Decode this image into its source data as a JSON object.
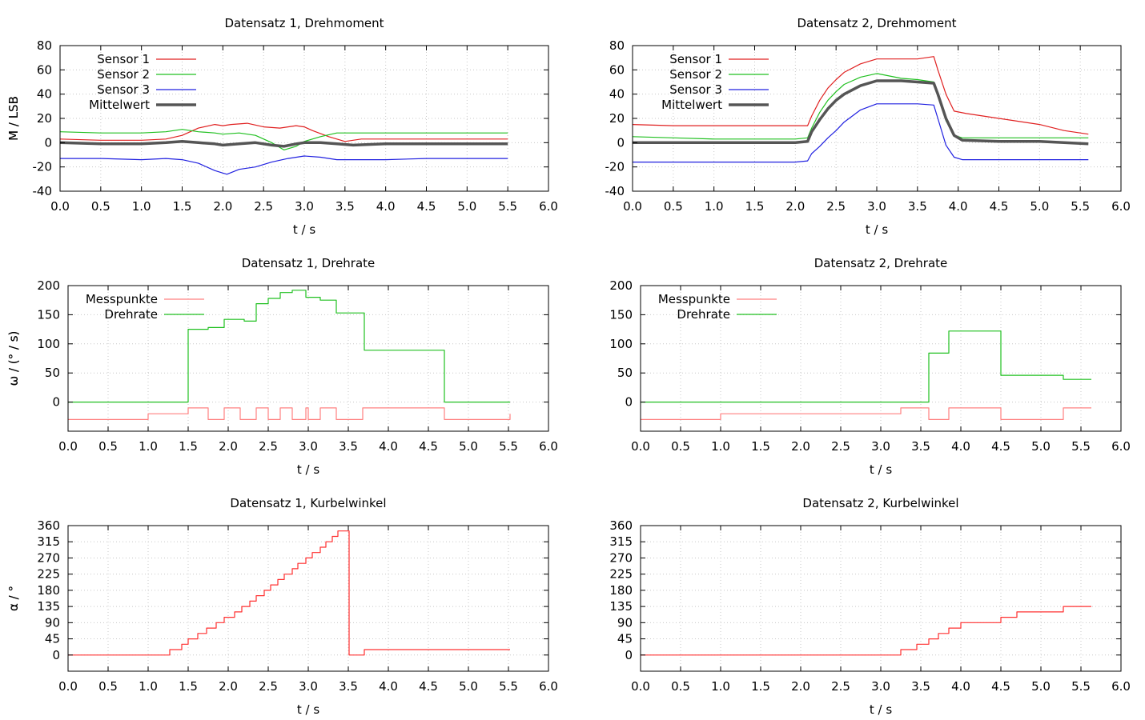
{
  "chart_data": [
    {
      "type": "line",
      "title": "Datensatz 1, Drehmoment",
      "xlabel": "t / s",
      "ylabel": "M / LSB",
      "xlim": [
        0,
        6
      ],
      "ylim": [
        -40,
        80
      ],
      "xticks": [
        "0.0",
        "0.5",
        "1.0",
        "1.5",
        "2.0",
        "2.5",
        "3.0",
        "3.5",
        "4.0",
        "4.5",
        "5.0",
        "5.5",
        "6.0"
      ],
      "yticks": [
        "-40",
        "-20",
        "0",
        "20",
        "40",
        "60",
        "80"
      ],
      "grid": true,
      "legend_position": "top-left",
      "series": [
        {
          "name": "Sensor 1",
          "color": "#e02020",
          "x": [
            0,
            0.5,
            1.0,
            1.3,
            1.5,
            1.7,
            1.9,
            2.0,
            2.1,
            2.3,
            2.5,
            2.7,
            2.9,
            3.0,
            3.1,
            3.3,
            3.5,
            3.7,
            4.0,
            4.5,
            5.0,
            5.5
          ],
          "y": [
            3,
            2,
            2,
            3,
            6,
            12,
            15,
            14,
            15,
            16,
            13,
            12,
            14,
            13,
            10,
            5,
            1,
            3,
            3,
            3,
            3,
            3
          ]
        },
        {
          "name": "Sensor 2",
          "color": "#20c020",
          "x": [
            0,
            0.5,
            1.0,
            1.3,
            1.5,
            1.7,
            1.9,
            2.0,
            2.2,
            2.4,
            2.6,
            2.75,
            2.9,
            3.0,
            3.2,
            3.4,
            3.6,
            4.0,
            4.5,
            5.0,
            5.5
          ],
          "y": [
            9,
            8,
            8,
            9,
            11,
            9,
            8,
            7,
            8,
            6,
            0,
            -6,
            -3,
            1,
            5,
            8,
            8,
            8,
            8,
            8,
            8
          ]
        },
        {
          "name": "Sensor 3",
          "color": "#2020e0",
          "x": [
            0,
            0.5,
            1.0,
            1.3,
            1.5,
            1.7,
            1.9,
            2.0,
            2.05,
            2.2,
            2.4,
            2.6,
            2.8,
            3.0,
            3.2,
            3.4,
            3.6,
            4.0,
            4.5,
            5.0,
            5.5
          ],
          "y": [
            -13,
            -13,
            -14,
            -13,
            -14,
            -17,
            -23,
            -25,
            -26,
            -22,
            -20,
            -16,
            -13,
            -11,
            -12,
            -14,
            -14,
            -14,
            -13,
            -13,
            -13
          ]
        },
        {
          "name": "Mittelwert",
          "color": "#555555",
          "x": [
            0,
            0.5,
            1.0,
            1.3,
            1.5,
            1.7,
            1.9,
            2.0,
            2.2,
            2.4,
            2.6,
            2.75,
            2.9,
            3.0,
            3.2,
            3.4,
            3.6,
            4.0,
            4.5,
            5.0,
            5.5
          ],
          "y": [
            0,
            -1,
            -1,
            0,
            1,
            0,
            -1,
            -2,
            -1,
            0,
            -2,
            -3,
            -1,
            0,
            0,
            -1,
            -2,
            -1,
            -1,
            -1,
            -1
          ]
        }
      ]
    },
    {
      "type": "line",
      "title": "Datensatz 2, Drehmoment",
      "xlabel": "t / s",
      "ylabel": "M / LSB",
      "xlim": [
        0,
        6
      ],
      "ylim": [
        -40,
        80
      ],
      "xticks": [
        "0.0",
        "0.5",
        "1.0",
        "1.5",
        "2.0",
        "2.5",
        "3.0",
        "3.5",
        "4.0",
        "4.5",
        "5.0",
        "5.5",
        "6.0"
      ],
      "yticks": [
        "-40",
        "-20",
        "0",
        "20",
        "40",
        "60",
        "80"
      ],
      "grid": true,
      "legend_position": "top-left",
      "series": [
        {
          "name": "Sensor 1",
          "color": "#e02020",
          "x": [
            0,
            0.5,
            1.0,
            1.5,
            2.0,
            2.15,
            2.2,
            2.3,
            2.4,
            2.5,
            2.6,
            2.8,
            3.0,
            3.3,
            3.5,
            3.7,
            3.75,
            3.85,
            3.95,
            4.1,
            4.5,
            5.0,
            5.3,
            5.6
          ],
          "y": [
            15,
            14,
            14,
            14,
            14,
            14,
            22,
            35,
            45,
            52,
            58,
            65,
            69,
            69,
            69,
            71,
            60,
            40,
            26,
            24,
            20,
            15,
            10,
            7
          ]
        },
        {
          "name": "Sensor 2",
          "color": "#20c020",
          "x": [
            0,
            0.5,
            1.0,
            1.5,
            2.0,
            2.15,
            2.2,
            2.3,
            2.4,
            2.5,
            2.6,
            2.8,
            3.0,
            3.3,
            3.5,
            3.7,
            3.75,
            3.85,
            3.95,
            4.05,
            4.5,
            5.0,
            5.3,
            5.6
          ],
          "y": [
            5,
            4,
            3,
            3,
            3,
            4,
            12,
            25,
            35,
            42,
            48,
            54,
            57,
            53,
            52,
            50,
            40,
            18,
            6,
            4,
            4,
            4,
            4,
            4
          ]
        },
        {
          "name": "Sensor 3",
          "color": "#2020e0",
          "x": [
            0,
            0.5,
            1.0,
            1.5,
            2.0,
            2.15,
            2.2,
            2.3,
            2.4,
            2.5,
            2.6,
            2.8,
            3.0,
            3.3,
            3.5,
            3.7,
            3.75,
            3.85,
            3.95,
            4.05,
            4.5,
            5.0,
            5.3,
            5.6
          ],
          "y": [
            -16,
            -16,
            -16,
            -16,
            -16,
            -15,
            -9,
            -3,
            4,
            10,
            17,
            27,
            32,
            32,
            32,
            31,
            20,
            -2,
            -12,
            -14,
            -14,
            -14,
            -14,
            -14
          ]
        },
        {
          "name": "Mittelwert",
          "color": "#555555",
          "x": [
            0,
            0.5,
            1.0,
            1.5,
            2.0,
            2.15,
            2.2,
            2.3,
            2.4,
            2.5,
            2.6,
            2.8,
            3.0,
            3.3,
            3.5,
            3.7,
            3.75,
            3.85,
            3.95,
            4.05,
            4.5,
            5.0,
            5.3,
            5.6
          ],
          "y": [
            0,
            0,
            0,
            0,
            0,
            1,
            9,
            19,
            28,
            35,
            40,
            47,
            51,
            51,
            50,
            49,
            40,
            20,
            6,
            2,
            1,
            1,
            0,
            -1
          ]
        }
      ]
    },
    {
      "type": "line",
      "title": "Datensatz 1, Drehrate",
      "xlabel": "t / s",
      "ylabel": "ω / (° / s)",
      "xlim": [
        0,
        6
      ],
      "ylim": [
        -50,
        200
      ],
      "xticks": [
        "0.0",
        "0.5",
        "1.0",
        "1.5",
        "2.0",
        "2.5",
        "3.0",
        "3.5",
        "4.0",
        "4.5",
        "5.0",
        "5.5",
        "6.0"
      ],
      "yticks": [
        "0",
        "50",
        "100",
        "150",
        "200"
      ],
      "grid": true,
      "legend_position": "top-left",
      "series": [
        {
          "name": "Messpunkte",
          "color": "#ff8080",
          "step": true,
          "x": [
            0,
            1.0,
            1.5,
            1.75,
            1.95,
            2.15,
            2.35,
            2.5,
            2.65,
            2.8,
            2.97,
            3.0,
            3.15,
            3.35,
            3.68,
            4.7,
            5.52
          ],
          "y": [
            -30,
            -20,
            -10,
            -30,
            -10,
            -30,
            -10,
            -30,
            -10,
            -30,
            -10,
            -30,
            -10,
            -30,
            -10,
            -30,
            -20
          ]
        },
        {
          "name": "Drehrate",
          "color": "#20c020",
          "step": true,
          "x": [
            0,
            1.5,
            1.75,
            1.95,
            2.2,
            2.35,
            2.5,
            2.65,
            2.8,
            2.97,
            3.15,
            3.35,
            3.7,
            4.7,
            5.52
          ],
          "y": [
            0,
            125,
            128,
            142,
            139,
            169,
            178,
            188,
            192,
            180,
            175,
            153,
            89,
            0,
            0
          ]
        }
      ]
    },
    {
      "type": "line",
      "title": "Datensatz 2, Drehrate",
      "xlabel": "t / s",
      "ylabel": "ω / (° / s)",
      "xlim": [
        0,
        6
      ],
      "ylim": [
        -50,
        200
      ],
      "xticks": [
        "0.0",
        "0.5",
        "1.0",
        "1.5",
        "2.0",
        "2.5",
        "3.0",
        "3.5",
        "4.0",
        "4.5",
        "5.0",
        "5.5",
        "6.0"
      ],
      "yticks": [
        "0",
        "50",
        "100",
        "150",
        "200"
      ],
      "grid": true,
      "legend_position": "top-left",
      "series": [
        {
          "name": "Messpunkte",
          "color": "#ff8080",
          "step": true,
          "x": [
            0,
            1.0,
            3.25,
            3.6,
            3.85,
            4.5,
            5.28,
            5.63
          ],
          "y": [
            -30,
            -20,
            -10,
            -30,
            -10,
            -30,
            -10,
            -10
          ]
        },
        {
          "name": "Drehrate",
          "color": "#20c020",
          "step": true,
          "x": [
            0,
            3.6,
            3.85,
            4.5,
            5.28,
            5.63
          ],
          "y": [
            0,
            84,
            122,
            46,
            39,
            39
          ]
        }
      ]
    },
    {
      "type": "line",
      "title": "Datensatz 1, Kurbelwinkel",
      "xlabel": "t / s",
      "ylabel": "α / °",
      "xlim": [
        0,
        6
      ],
      "ylim": [
        -45,
        360
      ],
      "xticks": [
        "0.0",
        "0.5",
        "1.0",
        "1.5",
        "2.0",
        "2.5",
        "3.0",
        "3.5",
        "4.0",
        "4.5",
        "5.0",
        "5.5",
        "6.0"
      ],
      "yticks": [
        "0",
        "45",
        "90",
        "135",
        "180",
        "225",
        "270",
        "315",
        "360"
      ],
      "grid": true,
      "series": [
        {
          "color": "#ff3030",
          "step": true,
          "x": [
            0,
            1.27,
            1.42,
            1.5,
            1.62,
            1.73,
            1.85,
            1.95,
            2.08,
            2.17,
            2.27,
            2.35,
            2.45,
            2.53,
            2.62,
            2.7,
            2.8,
            2.87,
            2.97,
            3.05,
            3.15,
            3.22,
            3.3,
            3.37,
            3.51,
            3.7,
            5.52
          ],
          "y": [
            0,
            15,
            30,
            45,
            60,
            75,
            90,
            105,
            120,
            135,
            150,
            165,
            180,
            195,
            210,
            225,
            240,
            255,
            270,
            285,
            300,
            315,
            330,
            345,
            0,
            15,
            15
          ]
        }
      ]
    },
    {
      "type": "line",
      "title": "Datensatz 2, Kurbelwinkel",
      "xlabel": "t / s",
      "ylabel": "α / °",
      "xlim": [
        0,
        6
      ],
      "ylim": [
        -45,
        360
      ],
      "xticks": [
        "0.0",
        "0.5",
        "1.0",
        "1.5",
        "2.0",
        "2.5",
        "3.0",
        "3.5",
        "4.0",
        "4.5",
        "5.0",
        "5.5",
        "6.0"
      ],
      "yticks": [
        "0",
        "45",
        "90",
        "135",
        "180",
        "225",
        "270",
        "315",
        "360"
      ],
      "grid": true,
      "series": [
        {
          "color": "#ff3030",
          "step": true,
          "x": [
            0,
            3.25,
            3.45,
            3.6,
            3.72,
            3.85,
            4.0,
            4.5,
            4.7,
            5.28,
            5.63
          ],
          "y": [
            0,
            15,
            30,
            45,
            60,
            75,
            90,
            105,
            120,
            135,
            135
          ]
        }
      ]
    }
  ]
}
